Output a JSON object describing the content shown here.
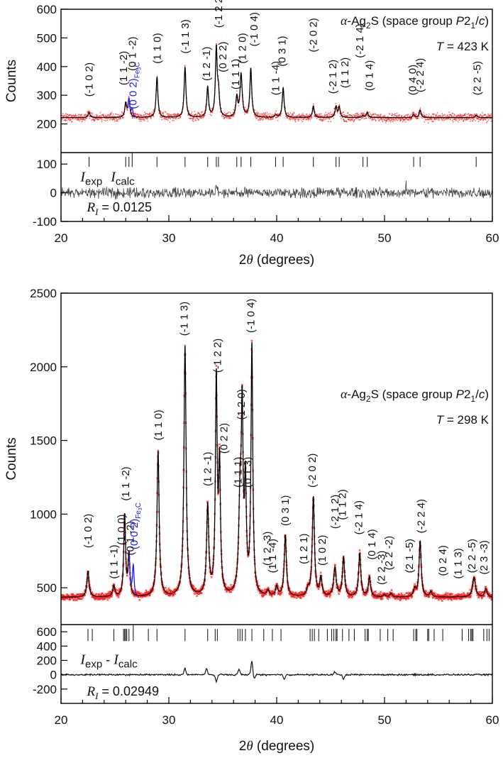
{
  "chart_data": [
    {
      "type": "line",
      "title": "α-Ag2S (space group P21/c)",
      "annotation_title": {
        "prefix": "α",
        "text": "-Ag",
        "sub": "2",
        "text2": "S (space group ",
        "italic": "P",
        "text3": "2",
        "sub2": "1",
        "text4": "/",
        "italic2": "c",
        "text5": ")"
      },
      "temperature_label": "T = 423 K",
      "temperature": {
        "sym": "T",
        "value": " = 423 K"
      },
      "xlabel": "2θ (degrees)",
      "ylabel": "Counts",
      "xlim": [
        20,
        60
      ],
      "ylim_main": [
        100,
        600
      ],
      "ylim_residual": [
        -100,
        140
      ],
      "xticks": [
        20,
        30,
        40,
        50,
        60
      ],
      "yticks_main": [
        200,
        300,
        400,
        500,
        600
      ],
      "yticks_residual": [
        -100,
        0,
        100
      ],
      "background": 222,
      "series": [
        {
          "name": "I_exp (observed)",
          "color": "#ff2020",
          "marker": "dot"
        },
        {
          "name": "I_calc (calculated)",
          "color": "#000000",
          "marker": "line"
        },
        {
          "name": "Fe3C (0 0 2)",
          "color": "#1a1aff",
          "marker": "line"
        }
      ],
      "peaks": [
        {
          "x": 22.6,
          "y": 240,
          "w": 0.1,
          "label": "(-1 0 2)"
        },
        {
          "x": 26.0,
          "y": 270,
          "w": 0.1,
          "label": "(1 1 -2)"
        },
        {
          "x": 26.3,
          "y": 285,
          "w": 0.1,
          "label": "(0 1 -2)"
        },
        {
          "x": 28.9,
          "y": 362,
          "w": 0.1,
          "label": "(1 1 0)"
        },
        {
          "x": 31.5,
          "y": 398,
          "w": 0.1,
          "label": "(-1 1 3)"
        },
        {
          "x": 33.6,
          "y": 325,
          "w": 0.1,
          "label": "(1 2 -1)"
        },
        {
          "x": 34.4,
          "y": 458,
          "w": 0.1,
          "label": "(-1 2 2)"
        },
        {
          "x": 34.6,
          "y": 300,
          "w": 0.1,
          "label": "(0 2 2)"
        },
        {
          "x": 36.3,
          "y": 290,
          "w": 0.1,
          "label": "(1 1 1)"
        },
        {
          "x": 36.7,
          "y": 370,
          "w": 0.12,
          "label": "(1 2 0)"
        },
        {
          "x": 37.6,
          "y": 392,
          "w": 0.1,
          "label": "(-1 0 4)"
        },
        {
          "x": 39.9,
          "y": 230,
          "w": 0.1,
          "label": "(1 1 -4)"
        },
        {
          "x": 40.6,
          "y": 325,
          "w": 0.1,
          "label": "(0 3 1)"
        },
        {
          "x": 43.4,
          "y": 262,
          "w": 0.1,
          "label": "(-2 0 2)"
        },
        {
          "x": 45.5,
          "y": 260,
          "w": 0.1,
          "label": "(-2 1 2)"
        },
        {
          "x": 45.8,
          "y": 258,
          "w": 0.1,
          "label": "(1 1 2)"
        },
        {
          "x": 48.0,
          "y": 230,
          "w": 0.1,
          "label": "(-2 1 4)"
        },
        {
          "x": 48.4,
          "y": 240,
          "w": 0.1,
          "label": "(0 1 4)"
        },
        {
          "x": 52.7,
          "y": 232,
          "w": 0.1,
          "label": "(0 4 0)"
        },
        {
          "x": 53.3,
          "y": 248,
          "w": 0.1,
          "label": "(-2 2 4)"
        },
        {
          "x": 58.5,
          "y": 230,
          "w": 0.1,
          "label": "(2 2 -5)"
        }
      ],
      "fe3c_peak": {
        "x": 26.6,
        "y": 248,
        "label": "(0 0 2)",
        "sub": "Fe3C"
      },
      "labels": [
        {
          "x": 22.6,
          "y": 295,
          "text": "(-1 0 2)"
        },
        {
          "x": 25.8,
          "y": 335,
          "text": "(1 1 -2)"
        },
        {
          "x": 26.6,
          "y": 385,
          "text": "(0 1 -2)"
        },
        {
          "x": 28.9,
          "y": 410,
          "text": "(1 1 0)"
        },
        {
          "x": 31.5,
          "y": 445,
          "text": "(-1 1 3)"
        },
        {
          "x": 33.5,
          "y": 350,
          "text": "(1 2 -1)"
        },
        {
          "x": 34.6,
          "y": 535,
          "text": "(-1 2 2)"
        },
        {
          "x": 35.0,
          "y": 380,
          "text": "(0 2 2)"
        },
        {
          "x": 36.2,
          "y": 320,
          "text": "(1 1 1)"
        },
        {
          "x": 36.8,
          "y": 410,
          "text": "(1 2 0)"
        },
        {
          "x": 37.9,
          "y": 470,
          "text": "(-1 0 4)"
        },
        {
          "x": 39.9,
          "y": 300,
          "text": "(1 1 -4)"
        },
        {
          "x": 40.5,
          "y": 400,
          "text": "(0 3 1)"
        },
        {
          "x": 43.4,
          "y": 450,
          "text": "(-2 0 2)"
        },
        {
          "x": 45.2,
          "y": 305,
          "text": "(-2 1 2)"
        },
        {
          "x": 46.3,
          "y": 325,
          "text": "(1 1 2)"
        },
        {
          "x": 47.7,
          "y": 430,
          "text": "(-2 1 4)"
        },
        {
          "x": 48.6,
          "y": 315,
          "text": "(0 1 4)"
        },
        {
          "x": 52.6,
          "y": 300,
          "text": "(0 4 0)"
        },
        {
          "x": 53.3,
          "y": 310,
          "text": "(-2 2 4)"
        },
        {
          "x": 58.6,
          "y": 300,
          "text": "(2 2 -5)"
        }
      ],
      "bragg_ticks": [
        22.6,
        26.0,
        26.3,
        26.6,
        28.9,
        31.5,
        33.6,
        34.4,
        34.6,
        36.3,
        36.7,
        37.6,
        39.9,
        40.6,
        43.4,
        45.5,
        45.8,
        48.0,
        48.4,
        52.7,
        53.3,
        58.5
      ],
      "residual_label": {
        "I": "I",
        "exp": "exp",
        "sep": "",
        "calc": "calc"
      },
      "residual_label_text": "I_exp - I_calc",
      "r_factor_text": "R_I = 0.0125",
      "r_factor": {
        "R": "R",
        "sub": "I",
        "value": " = 0.0125"
      },
      "noise_amplitude": {
        "observed": 14,
        "residual": 14
      }
    },
    {
      "type": "line",
      "title": "α-Ag2S (space group P21/c)",
      "annotation_title": {
        "prefix": "α",
        "text": "-Ag",
        "sub": "2",
        "text2": "S (space group ",
        "italic": "P",
        "text3": "2",
        "sub2": "1",
        "text4": "/",
        "italic2": "c",
        "text5": ")"
      },
      "temperature_label": "T = 298 K",
      "temperature": {
        "sym": "T",
        "value": " = 298 K"
      },
      "xlabel": "2θ (degrees)",
      "ylabel": "Counts",
      "xlim": [
        20,
        60
      ],
      "ylim_main": [
        250,
        2500
      ],
      "ylim_residual": [
        -400,
        700
      ],
      "xticks": [
        20,
        30,
        40,
        50,
        60
      ],
      "yticks_main": [
        500,
        1000,
        1500,
        2000,
        2500
      ],
      "yticks_residual": [
        -200,
        0,
        200,
        400,
        600
      ],
      "background": 435,
      "series": [
        {
          "name": "I_exp (observed)",
          "color": "#ff2020",
          "marker": "x"
        },
        {
          "name": "I_calc (calculated)",
          "color": "#000000",
          "marker": "line"
        },
        {
          "name": "Fe3C (0 0 2)",
          "color": "#1a1aff",
          "marker": "line"
        }
      ],
      "peaks": [
        {
          "x": 22.5,
          "y": 610,
          "w": 0.12,
          "label": "(-1 0 2)"
        },
        {
          "x": 24.9,
          "y": 510,
          "w": 0.12,
          "label": "(1 1 -1)"
        },
        {
          "x": 25.9,
          "y": 985,
          "w": 0.1,
          "label": "(1 0 0)"
        },
        {
          "x": 26.3,
          "y": 710,
          "w": 0.1,
          "label": "(0 1 -2)"
        },
        {
          "x": 29.0,
          "y": 1420,
          "w": 0.12,
          "label": "(1 1 0)"
        },
        {
          "x": 31.5,
          "y": 2130,
          "w": 0.12,
          "label": "(-1 1 3)"
        },
        {
          "x": 33.6,
          "y": 1040,
          "w": 0.12,
          "label": "(1 2 -1)"
        },
        {
          "x": 34.4,
          "y": 1880,
          "w": 0.1,
          "label": "(-1 2 2)"
        },
        {
          "x": 34.7,
          "y": 1290,
          "w": 0.1,
          "label": "(0 2 2)"
        },
        {
          "x": 36.6,
          "y": 1030,
          "w": 0.14,
          "label": "(1 1 1)"
        },
        {
          "x": 36.8,
          "y": 1580,
          "w": 0.1,
          "label": "(1 2 0)"
        },
        {
          "x": 37.1,
          "y": 1150,
          "w": 0.1,
          "label": "(0 1 3)"
        },
        {
          "x": 37.7,
          "y": 2120,
          "w": 0.1,
          "label": "(-1 0 4)"
        },
        {
          "x": 39.2,
          "y": 470,
          "w": 0.12,
          "label": "(1 2 -3)"
        },
        {
          "x": 40.0,
          "y": 500,
          "w": 0.12,
          "label": "(1 1 -4)"
        },
        {
          "x": 40.8,
          "y": 850,
          "w": 0.12,
          "label": "(0 3 1)"
        },
        {
          "x": 42.9,
          "y": 480,
          "w": 0.12,
          "label": "(1 2 1)"
        },
        {
          "x": 43.4,
          "y": 1110,
          "w": 0.12,
          "label": "(-2 0 2)"
        },
        {
          "x": 44.1,
          "y": 560,
          "w": 0.12,
          "label": "(1 0 2)"
        },
        {
          "x": 45.4,
          "y": 630,
          "w": 0.14,
          "label": "(-2 1 2)"
        },
        {
          "x": 46.2,
          "y": 700,
          "w": 0.12,
          "label": "(1 1 2)"
        },
        {
          "x": 47.7,
          "y": 730,
          "w": 0.12,
          "label": "(-2 1 4)"
        },
        {
          "x": 48.6,
          "y": 570,
          "w": 0.12,
          "label": "(0 1 4)"
        },
        {
          "x": 50.0,
          "y": 450,
          "w": 0.12,
          "label": "(2 2 -3)"
        },
        {
          "x": 50.6,
          "y": 460,
          "w": 0.12,
          "label": "(2 2 -2)"
        },
        {
          "x": 52.8,
          "y": 490,
          "w": 0.12,
          "label": "(2 1 -5)"
        },
        {
          "x": 53.3,
          "y": 810,
          "w": 0.12,
          "label": "(-2 2 4)"
        },
        {
          "x": 54.3,
          "y": 470,
          "w": 0.12,
          "label": "(0 2 4)"
        },
        {
          "x": 56.8,
          "y": 440,
          "w": 0.12,
          "label": "(1 1 3)"
        },
        {
          "x": 58.3,
          "y": 570,
          "w": 0.16,
          "label": "(2 2 -5)"
        },
        {
          "x": 59.4,
          "y": 490,
          "w": 0.14,
          "label": "(2 3 -3)"
        }
      ],
      "fe3c_peak": {
        "x": 26.7,
        "y": 630,
        "label": "(0 0 2)",
        "sub": "Fe3C"
      },
      "labels": [
        {
          "x": 22.5,
          "y": 770,
          "text": "(-1 0 2)"
        },
        {
          "x": 24.9,
          "y": 560,
          "text": "(1 1 -1)"
        },
        {
          "x": 25.6,
          "y": 790,
          "text": "(1 0 0)"
        },
        {
          "x": 26.0,
          "y": 1090,
          "text": "(1 1 -2)"
        },
        {
          "x": 26.4,
          "y": 720,
          "text": "(0 1 -2)"
        },
        {
          "x": 29.0,
          "y": 1500,
          "text": "(1 1 0)"
        },
        {
          "x": 31.4,
          "y": 2210,
          "text": "(-1 1 3)"
        },
        {
          "x": 33.6,
          "y": 1190,
          "text": "(1 2 -1)"
        },
        {
          "x": 34.5,
          "y": 1960,
          "text": "(-1 2 2)"
        },
        {
          "x": 35.1,
          "y": 1410,
          "text": "(0 2 2)"
        },
        {
          "x": 36.4,
          "y": 1180,
          "text": "(1 1 1)"
        },
        {
          "x": 36.7,
          "y": 1640,
          "text": "(1 2 0)"
        },
        {
          "x": 37.3,
          "y": 1180,
          "text": "(0 1 3)"
        },
        {
          "x": 37.6,
          "y": 2230,
          "text": "(-1 0 4)"
        },
        {
          "x": 39.1,
          "y": 650,
          "text": "(1 2 -3)"
        },
        {
          "x": 39.6,
          "y": 600,
          "text": "(1 1 -4)"
        },
        {
          "x": 40.8,
          "y": 920,
          "text": "(0 3 1)"
        },
        {
          "x": 42.5,
          "y": 660,
          "text": "(1 2 1)"
        },
        {
          "x": 43.3,
          "y": 1180,
          "text": "(-2 0 2)"
        },
        {
          "x": 44.2,
          "y": 650,
          "text": "(1 0 2)"
        },
        {
          "x": 45.4,
          "y": 900,
          "text": "(-2 1 2)"
        },
        {
          "x": 46.1,
          "y": 960,
          "text": "(1 1 2)"
        },
        {
          "x": 47.6,
          "y": 860,
          "text": "(-2 1 4)"
        },
        {
          "x": 48.8,
          "y": 690,
          "text": "(0 1 4)"
        },
        {
          "x": 49.7,
          "y": 520,
          "text": "(2 2 -3)"
        },
        {
          "x": 50.4,
          "y": 620,
          "text": "(2 2 -2)"
        },
        {
          "x": 52.3,
          "y": 600,
          "text": "(2 1 -5)"
        },
        {
          "x": 53.4,
          "y": 870,
          "text": "(-2 2 4)"
        },
        {
          "x": 55.4,
          "y": 580,
          "text": "(0 2 4)"
        },
        {
          "x": 56.8,
          "y": 560,
          "text": "(1 1 3)"
        },
        {
          "x": 58.1,
          "y": 600,
          "text": "(2 2 -5)"
        },
        {
          "x": 59.2,
          "y": 590,
          "text": "(2 3 -3)"
        }
      ],
      "bragg_ticks": [
        22.5,
        22.9,
        24.9,
        25.8,
        25.9,
        26.0,
        26.1,
        26.3,
        26.7,
        28.1,
        28.9,
        31.5,
        33.6,
        34.3,
        34.5,
        36.4,
        36.6,
        36.8,
        37.1,
        37.7,
        38.8,
        39.6,
        40.4,
        43.1,
        43.3,
        43.5,
        43.9,
        44.7,
        45.1,
        45.3,
        45.5,
        45.6,
        46.1,
        46.7,
        47.2,
        48.2,
        48.4,
        48.5,
        49.6,
        50.3,
        50.8,
        52.7,
        52.9,
        53.0,
        54.0,
        54.1,
        54.6,
        55.4,
        57.2,
        57.8,
        58.0,
        58.1,
        58.2,
        59.2,
        59.5,
        59.7
      ],
      "residual_label": {
        "I": "I",
        "exp": "exp",
        "sep": " - ",
        "calc": "calc"
      },
      "residual_label_text": "I_exp - I_calc",
      "r_factor_text": "R_I = 0.02949",
      "r_factor": {
        "R": "R",
        "sub": "I",
        "value": " = 0.02949"
      },
      "residual_features": [
        {
          "x": 31.5,
          "a": 90
        },
        {
          "x": 33.5,
          "a": 90
        },
        {
          "x": 34.4,
          "a": -100
        },
        {
          "x": 36.5,
          "a": 80
        },
        {
          "x": 37.7,
          "a": 190
        },
        {
          "x": 37.9,
          "a": -60
        },
        {
          "x": 40.7,
          "a": -60
        },
        {
          "x": 45.4,
          "a": 40
        },
        {
          "x": 46.2,
          "a": -60
        }
      ],
      "noise_amplitude": {
        "observed": 22,
        "residual": 8
      }
    }
  ],
  "colors": {
    "observed": "#ff2020",
    "calculated": "#000000",
    "fe3c": "#1a1aff",
    "residual": "#333333",
    "axis": "#000000"
  }
}
